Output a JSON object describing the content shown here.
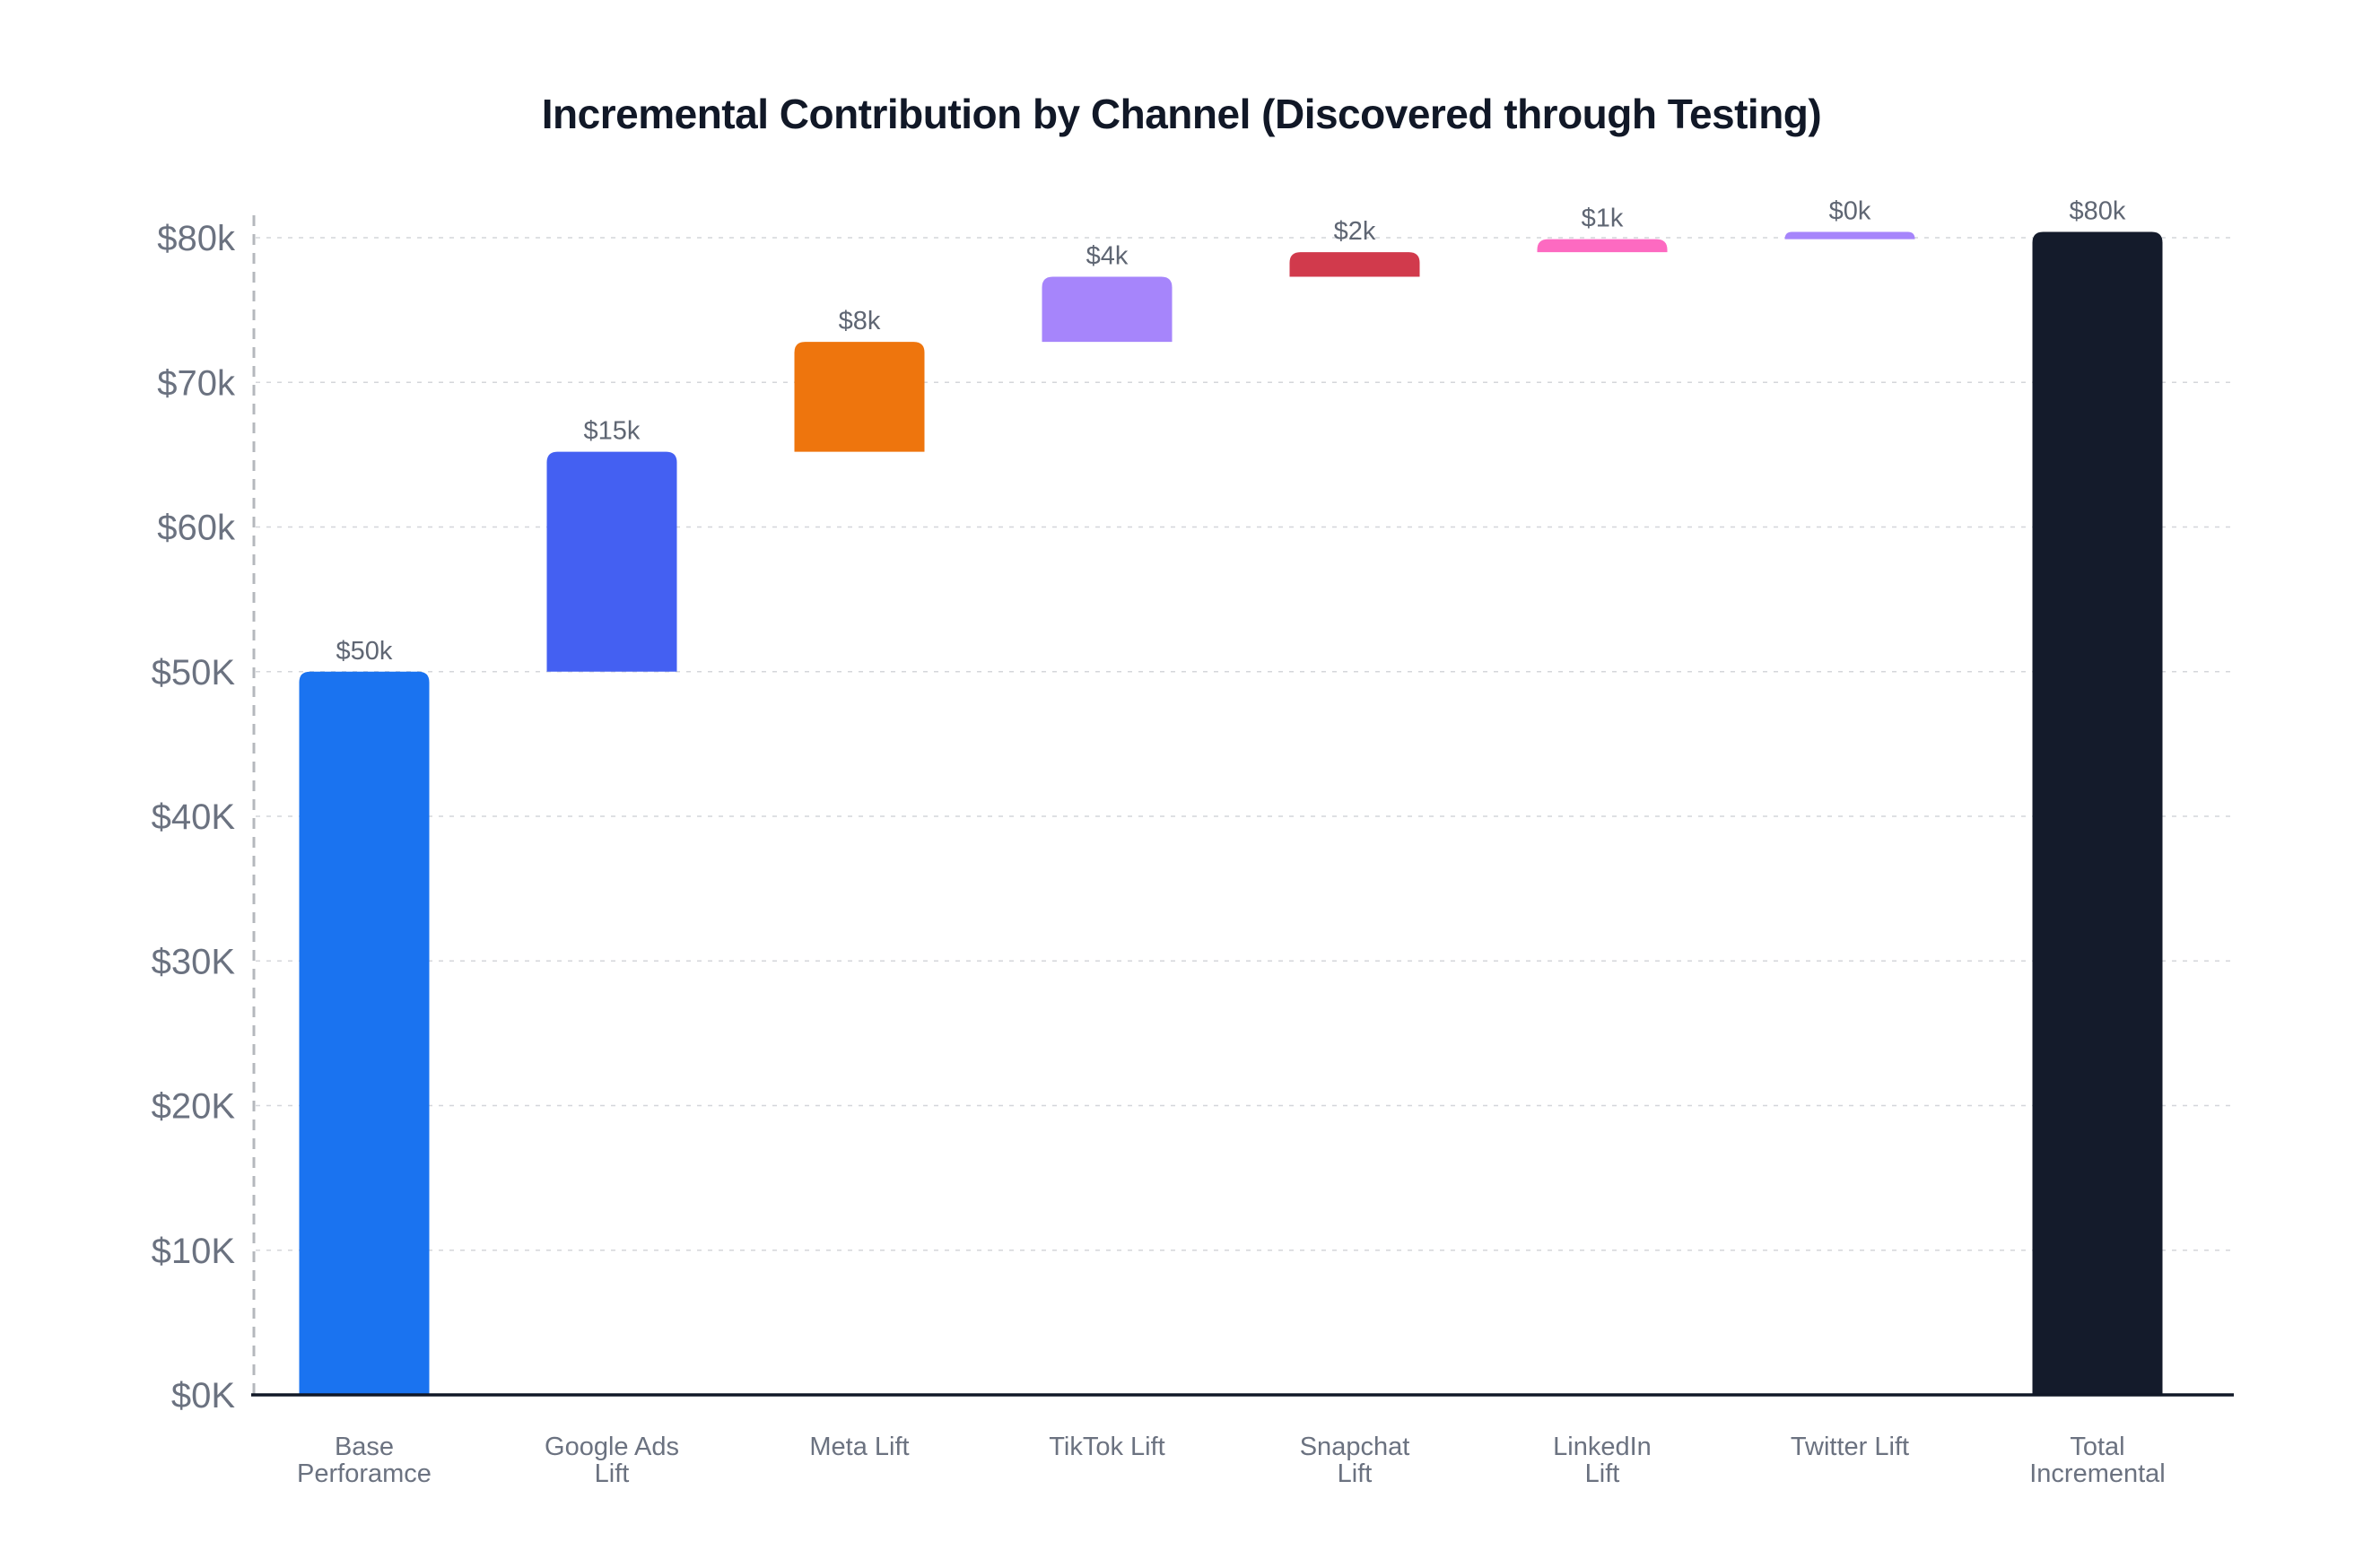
{
  "chart_data": {
    "type": "bar",
    "subtype": "waterfall",
    "title": "Incremental Contribution by Channel (Discovered through Testing)",
    "xlabel": "",
    "ylabel": "",
    "ylim": [
      0,
      80000
    ],
    "grid": true,
    "legend": "none",
    "y_ticks": [
      {
        "value": 0,
        "label": "$0K"
      },
      {
        "value": 10000,
        "label": "$10K"
      },
      {
        "value": 20000,
        "label": "$20K"
      },
      {
        "value": 30000,
        "label": "$30K"
      },
      {
        "value": 40000,
        "label": "$40K"
      },
      {
        "value": 50000,
        "label": "$50K"
      },
      {
        "value": 60000,
        "label": "$60k"
      },
      {
        "value": 70000,
        "label": "$70k"
      },
      {
        "value": 80000,
        "label": "$80k"
      }
    ],
    "categories": [
      [
        "Base",
        "Perforamce"
      ],
      [
        "Google Ads",
        "Lift"
      ],
      [
        "Meta Lift"
      ],
      [
        "TikTok Lift"
      ],
      [
        "Snapchat",
        "Lift"
      ],
      [
        "LinkedIn",
        "Lift"
      ],
      [
        "Twitter Lift"
      ],
      [
        "Total",
        "Incremental"
      ]
    ],
    "bars": [
      {
        "start": 0,
        "end": 50000,
        "label": "$50k",
        "color": "#1a73f0"
      },
      {
        "start": 50000,
        "end": 65200,
        "label": "$15k",
        "color": "#4460f2"
      },
      {
        "start": 65200,
        "end": 72800,
        "label": "$8k",
        "color": "#ee750d"
      },
      {
        "start": 72800,
        "end": 77300,
        "label": "$4k",
        "color": "#a685fb"
      },
      {
        "start": 77300,
        "end": 79000,
        "label": "$2k",
        "color": "#d13a4c"
      },
      {
        "start": 79000,
        "end": 79900,
        "label": "$1k",
        "color": "#fd6ac1"
      },
      {
        "start": 79900,
        "end": 80400,
        "label": "$0k",
        "color": "#a685fb"
      },
      {
        "start": 0,
        "end": 80400,
        "label": "$80k",
        "color": "#141b2b"
      }
    ]
  }
}
